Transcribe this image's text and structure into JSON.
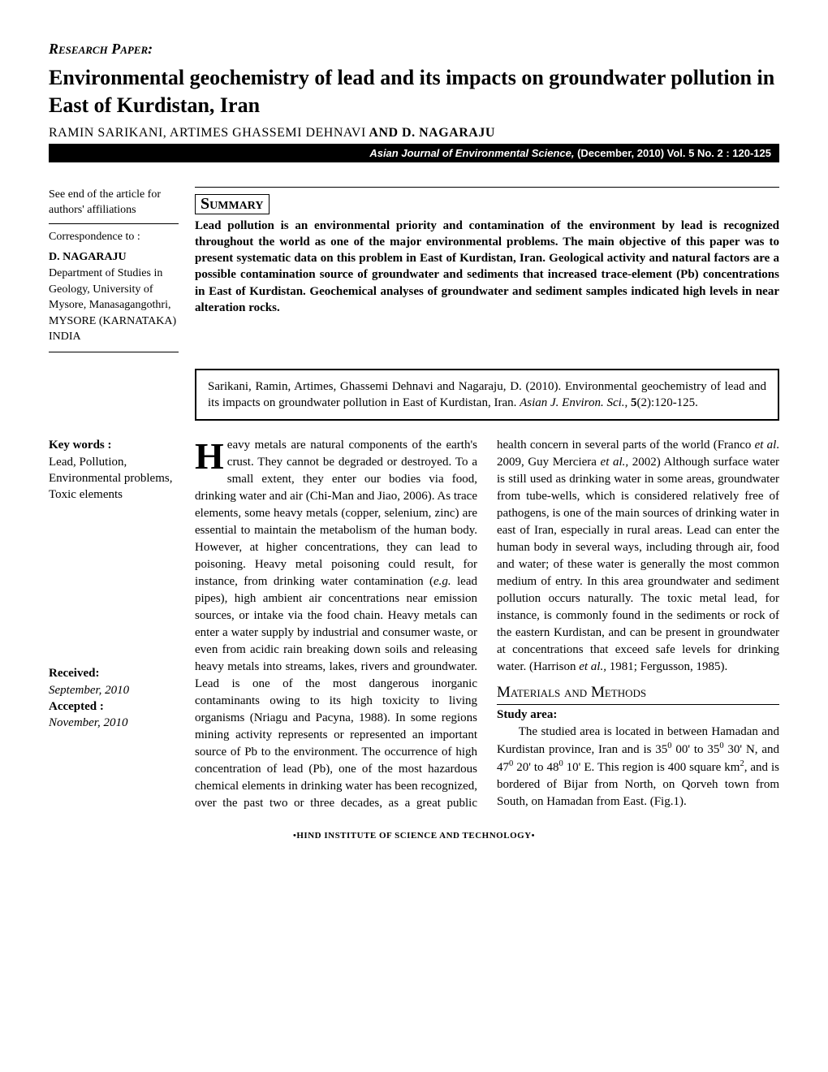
{
  "section_label": "Research Paper:",
  "title": "Environmental geochemistry of lead and its impacts on groundwater pollution in East of Kurdistan, Iran",
  "authors_plain": "RAMIN SARIKANI,  ARTIMES GHASSEMI DEHNAVI",
  "authors_and": " AND ",
  "authors_bold": "D. NAGARAJU",
  "journal_name": "Asian Journal of Environmental Science,",
  "journal_info": "  (December, 2010)  Vol. 5 No. 2 : 120-125",
  "affil_note": "See end of the article for authors' affiliations",
  "corr_label": "Correspondence to :",
  "corr_name": "D. NAGARAJU",
  "corr_addr": "Department of Studies in Geology, University of Mysore, Manasagangothri, MYSORE (KARNATAKA) INDIA",
  "summary_head": "Summary",
  "summary_text": "Lead pollution is an environmental priority and contamination of the environment by lead is recognized throughout the world as one of the major environmental problems.  The main objective of this paper was to present  systematic data on this problem in East of Kurdistan, Iran. Geological activity and natural factors are a possible contamination source of groundwater and sediments that increased trace-element (Pb) concentrations in East of Kurdistan. Geochemical analyses of groundwater and sediment samples indicated high levels in near alteration rocks.",
  "citation_a": "Sarikani, Ramin, Artimes, Ghassemi Dehnavi and Nagaraju, D. (2010). Environmental geochemistry of lead and its impacts on groundwater pollution in East of  Kurdistan, Iran. ",
  "citation_j": "Asian J. Environ. Sci.",
  "citation_b": ", ",
  "citation_vol": "5",
  "citation_c": "(2):120-125.",
  "kw_head": "Key words :",
  "kw_text": "Lead, Pollution, Environmental problems, Toxic elements",
  "recv_lbl": "Received:",
  "recv_val": "September, 2010",
  "acc_lbl": "Accepted :",
  "acc_val": "November, 2010",
  "dropcap": "H",
  "body1a": "eavy metals are natural components of the earth's crust. They cannot be degraded or destroyed. To a small extent, they enter our bodies via food, drinking water and air (Chi-Man and Jiao, 2006). As trace elements, some heavy metals (copper, selenium, zinc) are essential to maintain the metabolism of the human body. However, at higher concentrations, they can lead to poisoning. Heavy metal poisoning could result, for instance, from drinking water contamination (",
  "body1b": "e.g.",
  "body1c": " lead pipes), high ambient air concentrations near emission sources, or intake via the food chain. Heavy metals can enter a water supply by industrial and consumer waste, or even from acidic rain breaking down soils and releasing heavy metals into streams, lakes, rivers and groundwater. Lead is one of the most dangerous inorganic contaminants owing to its high toxicity to living organisms (Nriagu and Pacyna, 1988). In some regions mining activity represents or represented an important source of Pb to the environment. The occurrence of high concentration of lead (Pb), one of the most hazardous chemical elements in drinking water has been recognized, over the past two or three decades, as a great public health concern in several parts of the world (Franco ",
  "body1d": "et al",
  "body1e": ". 2009, Guy Merciera ",
  "body1f": "et al.,",
  "body1g": " 2002) Although surface water is still used as drinking water in some areas, groundwater from tube-wells, which is considered relatively free of pathogens, is one of the main sources of drinking water in east of Iran, especially in rural areas. Lead can enter the human body in several ways, including through air, food and water; of these water is generally the most common medium of entry. In this area groundwater and sediment pollution occurs naturally. The toxic metal lead, for instance, is commonly found in the sediments or rock of the eastern Kurdistan, and can be present in groundwater at concentrations that exceed safe levels for drinking water. (Harrison ",
  "body1h": "et al.,",
  "body1i": " 1981; Fergusson, 1985).",
  "mm_head": "Materials and Methods",
  "sa_head": "Study area:",
  "body2a": "The studied area is located in between Hamadan and Kurdistan province, Iran and is 35",
  "body2b": " 00' to 35",
  "body2c": " 30' N, and 47",
  "body2d": " 20' to 48",
  "body2e": " 10' E. This region is 400 square km",
  "body2f": ", and is bordered of Bijar from North, on Qorveh town from South, on Hamadan from East. (Fig.1).",
  "footer": "•HIND INSTITUTE OF SCIENCE AND TECHNOLOGY•"
}
